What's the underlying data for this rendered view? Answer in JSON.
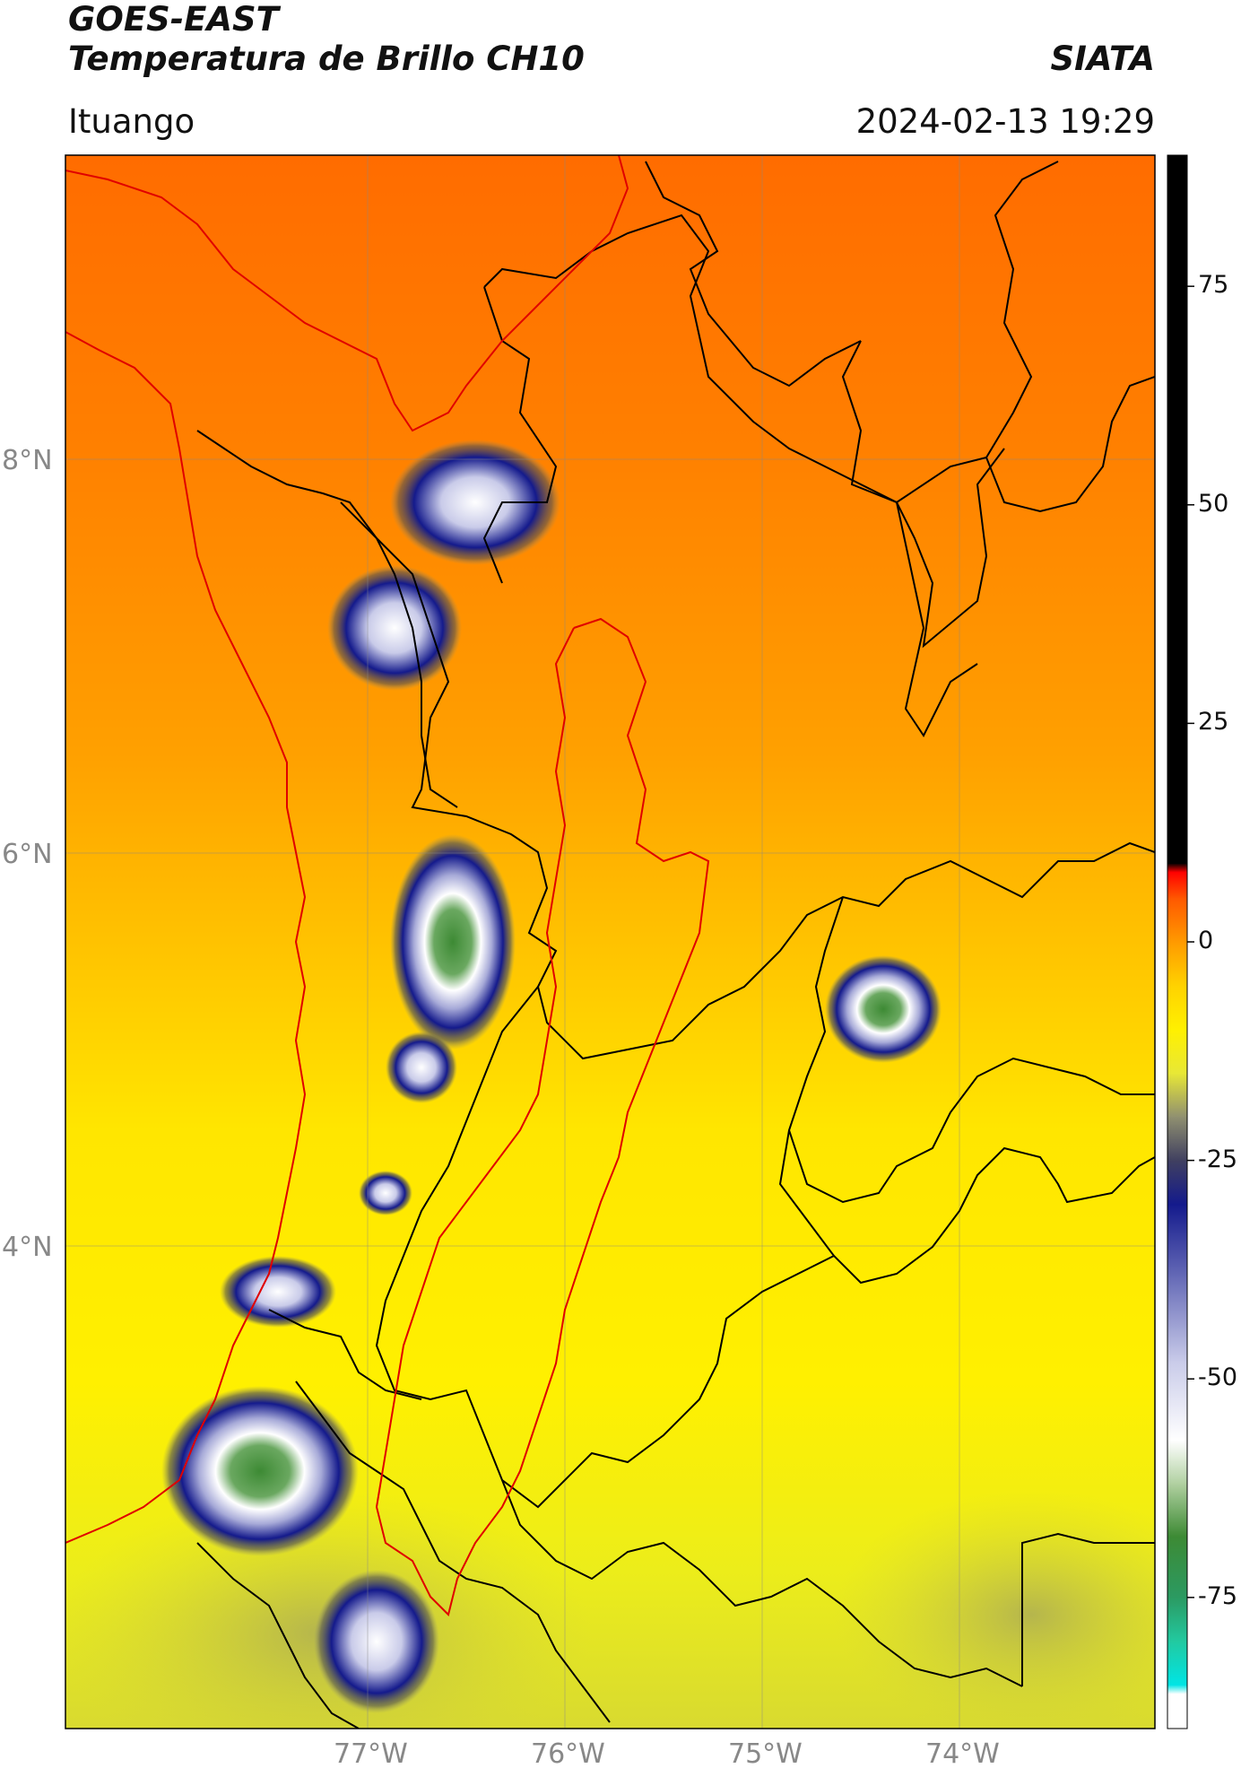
{
  "header": {
    "satellite": "GOES-EAST",
    "product": "Temperatura de Brillo CH10",
    "organization": "SIATA",
    "location": "Ituango",
    "timestamp": "2024-02-13 19:29"
  },
  "map": {
    "lon_range": [
      -78.55,
      -73.0
    ],
    "lat_range": [
      1.5,
      9.5
    ],
    "x_ticks": [
      -77,
      -76,
      -75,
      -74
    ],
    "x_tick_labels": [
      "77°W",
      "76°W",
      "75°W",
      "74°W"
    ],
    "y_ticks": [
      4,
      6,
      8
    ],
    "y_tick_labels": [
      "4°N",
      "6°N",
      "8°N"
    ],
    "grid": true,
    "state_boundary_color": "#000000",
    "region_boundary_color": "#e00000"
  },
  "colorbar": {
    "min": -90,
    "max": 90,
    "ticks": [
      75,
      50,
      25,
      0,
      -25,
      -50,
      -75
    ],
    "tick_labels": [
      "75",
      "50",
      "25",
      "0",
      "-25",
      "-50",
      "-75"
    ],
    "stops": [
      {
        "v": -90,
        "color": "#ffffff"
      },
      {
        "v": -86,
        "color": "#ffffff"
      },
      {
        "v": -85,
        "color": "#00e5e5"
      },
      {
        "v": -80,
        "color": "#22c9a0"
      },
      {
        "v": -75,
        "color": "#2b9a62"
      },
      {
        "v": -68,
        "color": "#3d8a34"
      },
      {
        "v": -62,
        "color": "#b0d0a0"
      },
      {
        "v": -57,
        "color": "#ffffff"
      },
      {
        "v": -48,
        "color": "#c9cbe9"
      },
      {
        "v": -38,
        "color": "#6267b5"
      },
      {
        "v": -30,
        "color": "#141a8c"
      },
      {
        "v": -25,
        "color": "#404060"
      },
      {
        "v": -20,
        "color": "#909070"
      },
      {
        "v": -15,
        "color": "#e8e836"
      },
      {
        "v": -10,
        "color": "#fff000"
      },
      {
        "v": -5,
        "color": "#ffd200"
      },
      {
        "v": 0,
        "color": "#ff9a00"
      },
      {
        "v": 5,
        "color": "#ff5800"
      },
      {
        "v": 8,
        "color": "#ff0000"
      },
      {
        "v": 9,
        "color": "#000000"
      },
      {
        "v": 90,
        "color": "#000000"
      }
    ]
  }
}
